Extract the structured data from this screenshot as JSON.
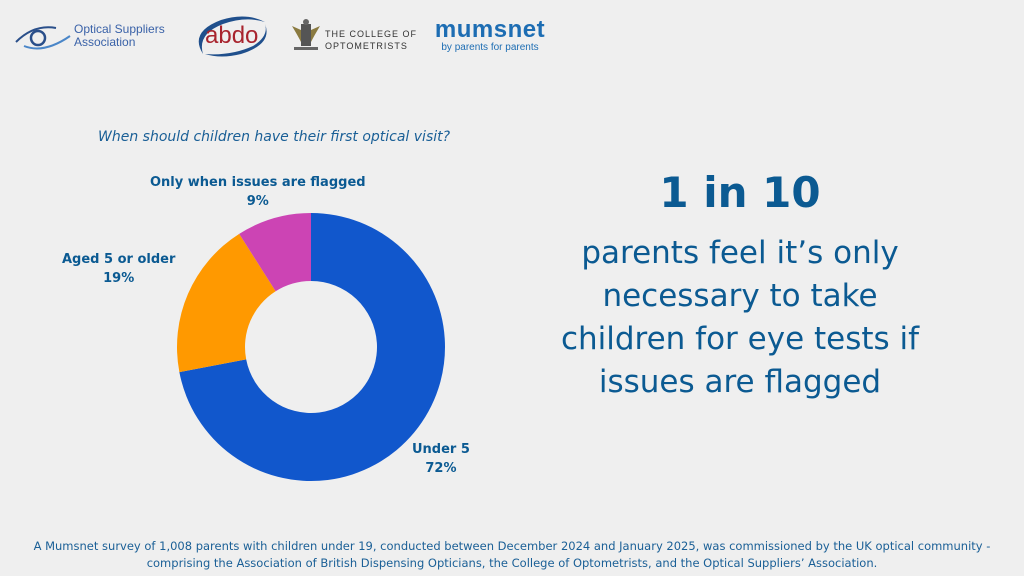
{
  "logos": {
    "osa": {
      "line1": "Optical Suppliers",
      "line2": "Association"
    },
    "abdo": {
      "text": "abdo"
    },
    "college": {
      "line1": "THE COLLEGE OF",
      "line2": "OPTOMETRISTS"
    },
    "mumsnet": {
      "name": "mumsnet",
      "tagline": "by parents for parents"
    }
  },
  "chart_data": {
    "type": "pie",
    "donut": true,
    "title": "When should children have their first optical visit?",
    "categories": [
      "Under 5",
      "Aged 5 or older",
      "Only when issues are flagged"
    ],
    "values": [
      72,
      19,
      9
    ],
    "labels": [
      "72%",
      "19%",
      "9%"
    ],
    "colors": [
      "#1157cc",
      "#ff9900",
      "#cc44b4"
    ],
    "start": "top, clockwise"
  },
  "headline": {
    "stat": "1 in 10",
    "text": [
      "parents feel it’s only",
      "necessary to take",
      "children for eye tests if",
      "issues are flagged"
    ]
  },
  "footer": {
    "line1": "A Mumsnet survey of 1,008 parents with children under 19, conducted between December 2024 and January 2025, was commissioned by the UK optical community -",
    "line2": "comprising the Association of British Dispensing Opticians, the College of Optometrists, and the Optical Suppliers’ Association."
  }
}
